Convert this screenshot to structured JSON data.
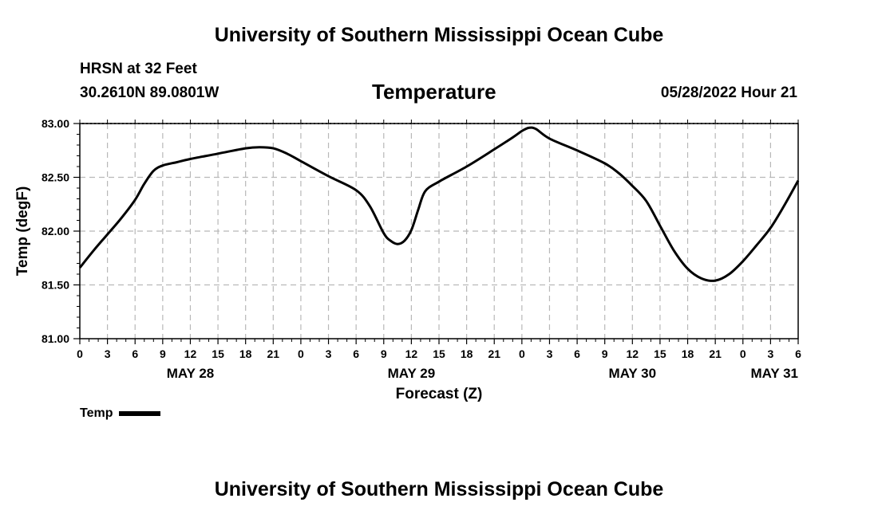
{
  "page": {
    "title_top": "University of Southern Mississippi Ocean Cube",
    "title_bottom": "University of Southern Mississippi Ocean Cube",
    "station": "HRSN at 32 Feet",
    "coordinates": "30.2610N  89.0801W",
    "variable_title": "Temperature",
    "timestamp": "05/28/2022 Hour 21"
  },
  "legend": {
    "label": "Temp",
    "color": "#000000"
  },
  "chart_data": {
    "type": "line",
    "title": "Temperature",
    "xlabel": "Forecast (Z)",
    "ylabel": "Temp (degF)",
    "ylim": [
      81.0,
      83.0
    ],
    "yticks": [
      "81.00",
      "81.50",
      "82.00",
      "82.50",
      "83.00"
    ],
    "xlim": [
      0,
      78
    ],
    "x_units": "hours since May 28 00Z",
    "xtick_labels": [
      "0",
      "3",
      "6",
      "9",
      "12",
      "15",
      "18",
      "21",
      "0",
      "3",
      "6",
      "9",
      "12",
      "15",
      "18",
      "21",
      "0",
      "3",
      "6",
      "9",
      "12",
      "15",
      "18",
      "21",
      "0",
      "3",
      "6"
    ],
    "day_labels": [
      {
        "label": "MAY 28",
        "hour": 12
      },
      {
        "label": "MAY 29",
        "hour": 36
      },
      {
        "label": "MAY 30",
        "hour": 60
      },
      {
        "label": "MAY 31",
        "hour": 78
      }
    ],
    "grid": true,
    "series": [
      {
        "name": "Temp",
        "color": "#000000",
        "x": [
          0,
          1.5,
          3,
          4.5,
          6,
          7,
          8,
          9,
          10.5,
          12,
          15,
          18,
          19.5,
          21,
          22.5,
          24,
          27,
          30,
          31.5,
          33,
          33.75,
          34.5,
          35.25,
          36,
          36.75,
          37.5,
          39,
          42,
          45,
          47,
          48,
          48.75,
          49.5,
          51,
          54,
          57,
          58.5,
          60,
          61.5,
          63,
          64.5,
          66,
          67.5,
          69,
          70.5,
          72,
          73.5,
          75,
          76.5,
          78
        ],
        "values": [
          81.66,
          81.82,
          81.97,
          82.12,
          82.29,
          82.44,
          82.56,
          82.61,
          82.64,
          82.67,
          82.72,
          82.77,
          82.78,
          82.77,
          82.72,
          82.65,
          82.51,
          82.38,
          82.23,
          81.98,
          81.91,
          81.88,
          81.91,
          82.01,
          82.2,
          82.37,
          82.46,
          82.6,
          82.76,
          82.87,
          82.93,
          82.96,
          82.95,
          82.86,
          82.75,
          82.63,
          82.54,
          82.42,
          82.28,
          82.05,
          81.82,
          81.65,
          81.56,
          81.54,
          81.6,
          81.72,
          81.87,
          82.03,
          82.24,
          82.47
        ]
      }
    ]
  }
}
